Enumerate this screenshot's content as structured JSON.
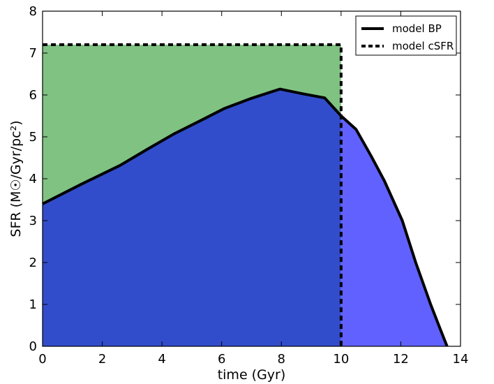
{
  "chart_data": {
    "type": "area",
    "xlabel": "time (Gyr)",
    "ylabel": "SFR (M☉/Gyr/pc²)",
    "xlim": [
      0,
      14
    ],
    "ylim": [
      0,
      8
    ],
    "xticks": [
      0,
      2,
      4,
      6,
      8,
      10,
      12,
      14
    ],
    "yticks": [
      0,
      1,
      2,
      3,
      4,
      5,
      6,
      7,
      8
    ],
    "grid": false,
    "legend_position": "top-right",
    "series": [
      {
        "name": "model BP",
        "style": "solid",
        "x": [
          0,
          1.3,
          2.6,
          3.5,
          4.4,
          5.3,
          6.1,
          7.0,
          7.95,
          8.7,
          9.45,
          10.0,
          10.5,
          11.0,
          11.45,
          12.05,
          12.5,
          13.0,
          13.3,
          13.55
        ],
        "y": [
          3.4,
          3.87,
          4.32,
          4.7,
          5.07,
          5.39,
          5.68,
          5.92,
          6.14,
          6.03,
          5.93,
          5.5,
          5.18,
          4.55,
          3.95,
          3.0,
          2.0,
          1.0,
          0.45,
          0.0
        ]
      },
      {
        "name": "model cSFR",
        "style": "dashed",
        "x": [
          0,
          10.0,
          10.0
        ],
        "y": [
          7.2,
          7.2,
          0
        ]
      }
    ],
    "legend": [
      "model BP",
      "model cSFR"
    ],
    "colors": {
      "excess_fill": "#80c282",
      "bp_before_cutoff": "#324dcc",
      "bp_after_cutoff": "#6161ff",
      "line": "#000000"
    },
    "cutoff_time": 10.0
  }
}
